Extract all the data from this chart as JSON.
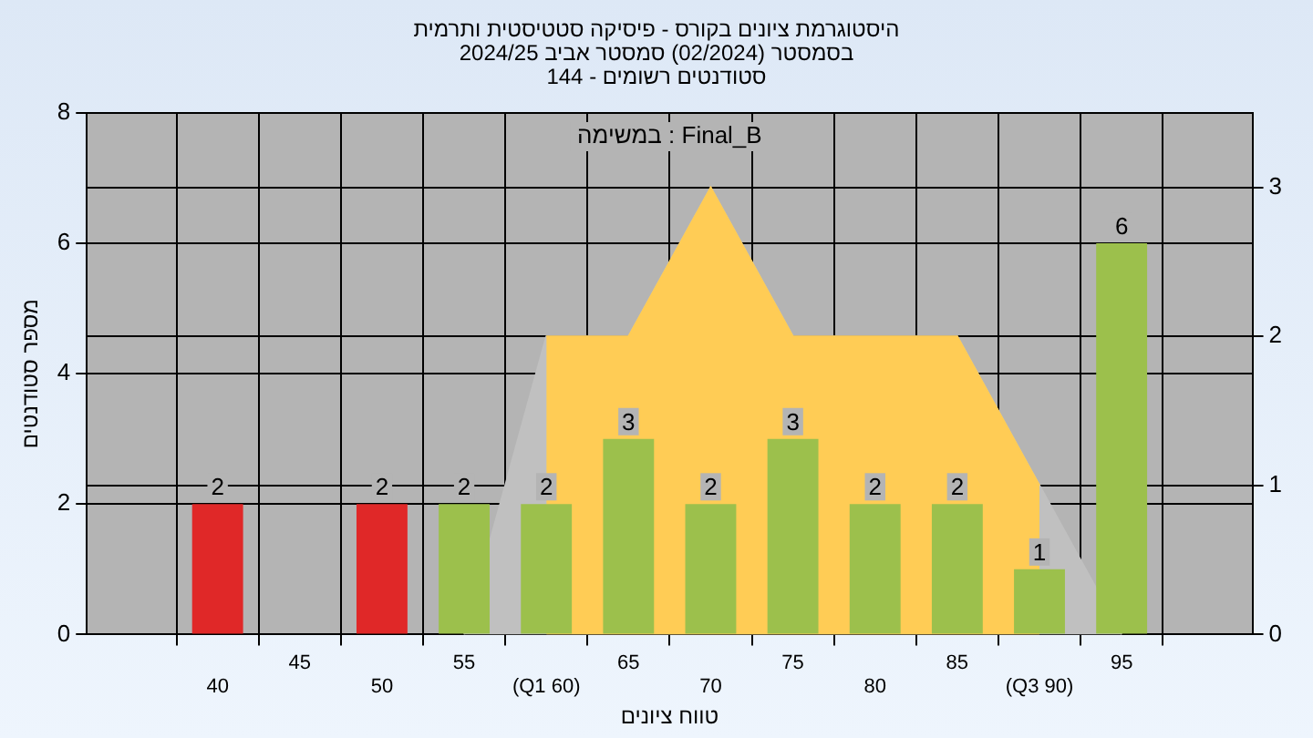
{
  "chart_data": {
    "type": "bar",
    "title": "היסטוגרמת ציונים בקורס - פיסיקה סטטיסטית ותרמית",
    "subtitle": "בסמסטר (02/2024) סמסטר אביב 2024/25",
    "xlabel": "טווח ציונים",
    "ylabel": "מספר סטודנטים",
    "annotations": [
      "סטודנטים רשומים - 144",
      "במשימה : Final_B"
    ],
    "categories": [
      "40",
      "45",
      "50",
      "55",
      "(Q1 60)",
      "65",
      "70",
      "75",
      "80",
      "85",
      "(Q3 90)",
      "95"
    ],
    "series": [
      {
        "type": "area",
        "axis": "y2",
        "color": "#c0c0c0",
        "values": [
          null,
          null,
          null,
          0,
          2,
          2,
          3,
          2,
          2,
          2,
          1,
          0
        ]
      },
      {
        "type": "area",
        "axis": "y2",
        "color": "#ffcc55",
        "values": [
          null,
          null,
          null,
          null,
          2,
          2,
          3,
          2,
          2,
          2,
          1,
          null
        ]
      },
      {
        "colors": [
          "#e02828",
          "#e02828",
          "#e02828",
          "#9cc04c",
          "#9cc04c",
          "#9cc04c",
          "#9cc04c",
          "#9cc04c",
          "#9cc04c",
          "#9cc04c",
          "#9cc04c",
          "#9cc04c"
        ],
        "values": [
          2,
          0,
          2,
          2,
          2,
          3,
          2,
          3,
          2,
          2,
          1,
          6
        ],
        "value_labels": [
          "2",
          null,
          "2",
          "2",
          "2",
          "3",
          "2",
          "3",
          "2",
          "2",
          "1",
          "6"
        ]
      }
    ],
    "ylim": [
      0,
      8
    ],
    "yticks": [
      0,
      2,
      4,
      6,
      8
    ],
    "y2lim": [
      0,
      3.5
    ],
    "y2ticks": [
      0,
      1,
      2,
      3
    ],
    "grid": true,
    "legend": false
  }
}
